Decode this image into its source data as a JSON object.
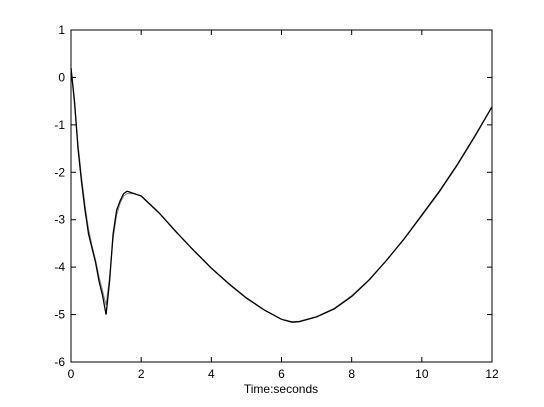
{
  "chart_data": {
    "type": "line",
    "xlabel": "Time:seconds",
    "x": [
      0,
      0.1,
      0.2,
      0.3,
      0.4,
      0.5,
      0.6,
      0.7,
      0.8,
      0.9,
      1.0,
      1.1,
      1.2,
      1.3,
      1.4,
      1.5,
      1.6,
      1.8,
      2.0,
      2.5,
      3,
      3.5,
      4,
      4.5,
      5,
      5.5,
      6,
      6.3,
      6.5,
      7,
      7.5,
      8,
      8.5,
      9,
      9.5,
      10,
      10.5,
      11,
      11.5,
      12
    ],
    "series": [
      {
        "color": "#000000",
        "values": [
          0.2,
          -0.5,
          -1.5,
          -2.2,
          -2.8,
          -3.3,
          -3.6,
          -3.9,
          -4.3,
          -4.6,
          -5.0,
          -4.3,
          -3.3,
          -2.8,
          -2.6,
          -2.45,
          -2.4,
          -2.45,
          -2.5,
          -2.85,
          -3.26,
          -3.65,
          -4.02,
          -4.35,
          -4.65,
          -4.9,
          -5.1,
          -5.16,
          -5.15,
          -5.05,
          -4.88,
          -4.62,
          -4.27,
          -3.85,
          -3.4,
          -2.9,
          -2.4,
          -1.85,
          -1.25,
          -0.62
        ]
      },
      {
        "color": "#808080",
        "values": [
          0.2,
          -0.6,
          -1.4,
          -2.1,
          -2.7,
          -3.2,
          -3.55,
          -3.85,
          -4.2,
          -4.5,
          -4.8,
          -4.2,
          -3.4,
          -2.9,
          -2.65,
          -2.5,
          -2.45,
          -2.45,
          -2.5,
          -2.84,
          -3.25,
          -3.65,
          -4.02,
          -4.36,
          -4.66,
          -4.9,
          -5.1,
          -5.15,
          -5.14,
          -5.04,
          -4.87,
          -4.6,
          -4.26,
          -3.85,
          -3.4,
          -2.92,
          -2.42,
          -1.87,
          -1.27,
          -0.62
        ]
      }
    ],
    "xlim": [
      0,
      12
    ],
    "xticks": [
      0,
      2,
      4,
      6,
      8,
      10,
      12
    ],
    "ylim": [
      -6,
      1
    ],
    "yticks": [
      -6,
      -5,
      -4,
      -3,
      -2,
      -1,
      0,
      1
    ]
  }
}
